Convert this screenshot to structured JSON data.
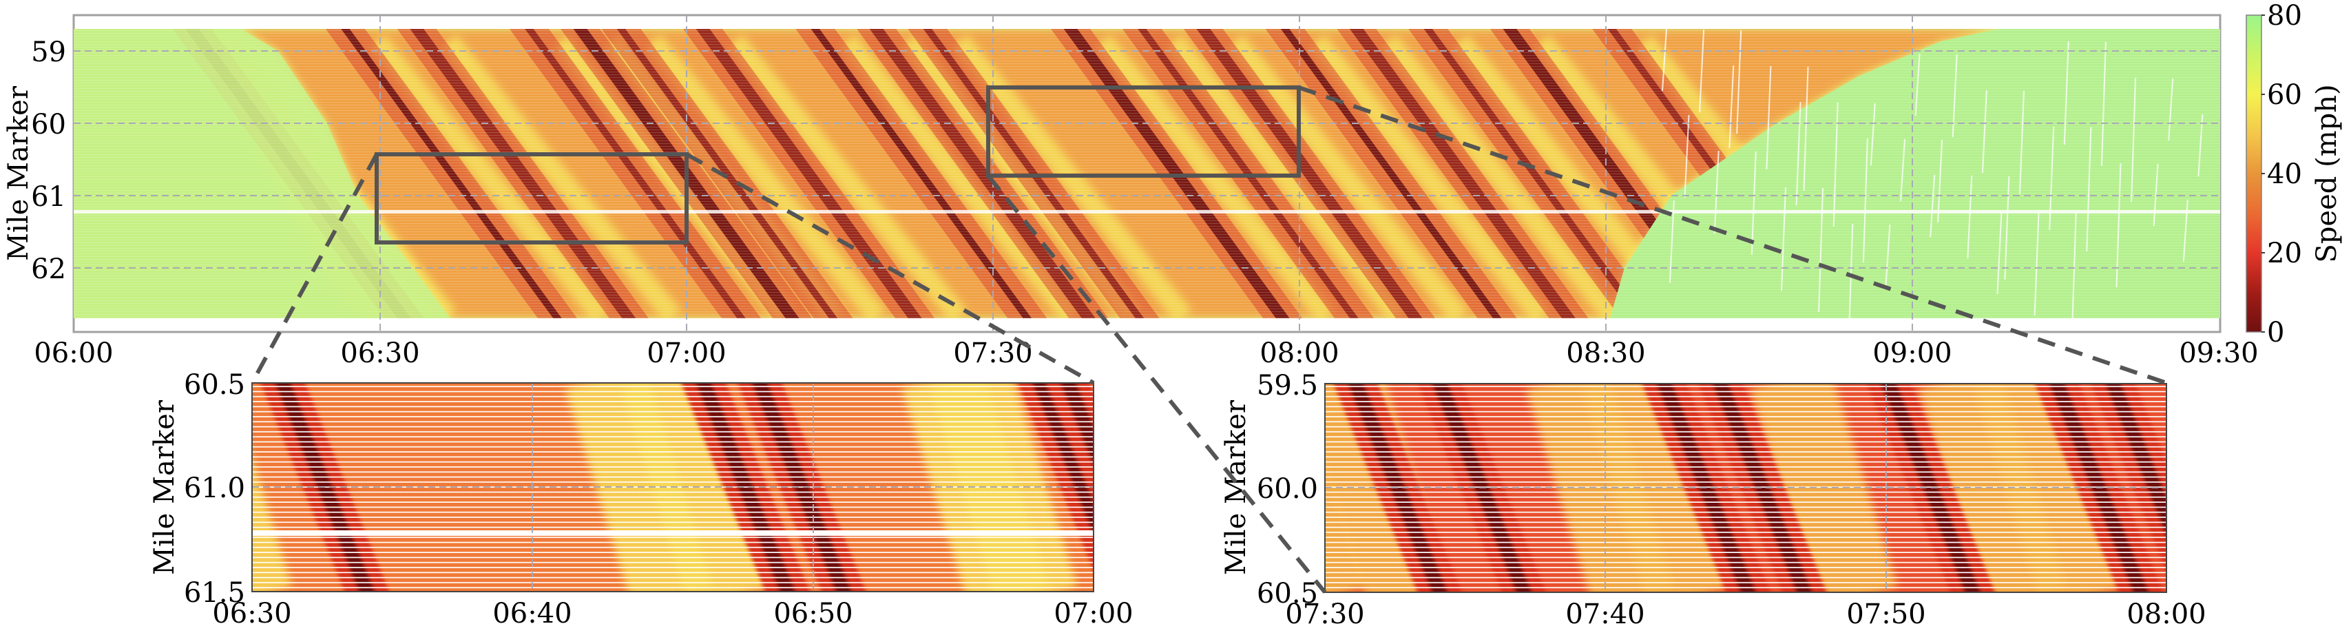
{
  "chart_data": [
    {
      "id": "main",
      "type": "heatmap",
      "title": "",
      "xlabel": "",
      "ylabel": "Mile Marker",
      "x_ticks": [
        "06:00",
        "06:30",
        "07:00",
        "07:30",
        "08:00",
        "08:30",
        "09:00",
        "09:30"
      ],
      "y_ticks": [
        "59",
        "60",
        "61",
        "62"
      ],
      "xlim": [
        "06:00",
        "09:30"
      ],
      "ylim": [
        62.7,
        58.7
      ],
      "y_inverted": true,
      "grid": true,
      "colorbar": {
        "label": "Speed (mph)",
        "ticks": [
          "0",
          "20",
          "40",
          "60",
          "80"
        ],
        "range": [
          0,
          80
        ],
        "colors": [
          {
            "value": 0,
            "hex": "#6e1010"
          },
          {
            "value": 20,
            "hex": "#e4372a"
          },
          {
            "value": 40,
            "hex": "#e8963a"
          },
          {
            "value": 60,
            "hex": "#f4f250"
          },
          {
            "value": 80,
            "hex": "#9cf58a"
          }
        ]
      },
      "description": "Time-space speed diagram; free flow (~70-80 mph) before ~06:20 and after ~08:30; congested stop-and-go waves (0-40 mph) propagating upstream between ~06:20 and ~08:40",
      "congestion_onset": [
        {
          "mile": 58.7,
          "time": "06:08"
        },
        {
          "mile": 59.0,
          "time": "06:12"
        },
        {
          "mile": 60.0,
          "time": "06:17"
        },
        {
          "mile": 61.0,
          "time": "06:20"
        },
        {
          "mile": 62.0,
          "time": "06:25"
        },
        {
          "mile": 62.7,
          "time": "06:28"
        }
      ],
      "congestion_clearance": [
        {
          "mile": 58.7,
          "time": "08:47"
        },
        {
          "mile": 59.0,
          "time": "08:44"
        },
        {
          "mile": 60.0,
          "time": "08:37"
        },
        {
          "mile": 61.0,
          "time": "08:33"
        },
        {
          "mile": 62.0,
          "time": "08:31"
        },
        {
          "mile": 62.7,
          "time": "08:30"
        }
      ],
      "wave_start_times_at_top": [
        "06:11",
        "06:26",
        "06:33",
        "06:44",
        "06:49",
        "06:53",
        "07:01",
        "07:12",
        "07:18",
        "07:23",
        "07:37",
        "07:44",
        "07:50",
        "07:58",
        "08:05",
        "08:12",
        "08:20",
        "08:30"
      ],
      "wave_travel_minutes_across_plot": 22,
      "data_gap_mile": 61.2,
      "zoom_boxes": [
        {
          "x": [
            "06:30",
            "07:00"
          ],
          "y": [
            60.5,
            61.5
          ]
        },
        {
          "x": [
            "07:30",
            "08:00"
          ],
          "y": [
            59.5,
            60.5
          ]
        }
      ]
    },
    {
      "id": "inset_left",
      "type": "heatmap",
      "ylabel": "Mile Marker",
      "x_ticks": [
        "06:30",
        "06:40",
        "06:50",
        "07:00"
      ],
      "y_ticks": [
        "60.5",
        "61.0",
        "61.5"
      ],
      "xlim": [
        "06:30",
        "07:00"
      ],
      "ylim": [
        61.5,
        60.5
      ],
      "wave_centers_at_top": [
        "06:31",
        "06:46",
        "06:48",
        "06:58",
        "06:59"
      ],
      "data_gap_mile": 61.2
    },
    {
      "id": "inset_right",
      "type": "heatmap",
      "ylabel": "Mile Marker",
      "x_ticks": [
        "07:30",
        "07:40",
        "07:50",
        "08:00"
      ],
      "y_ticks": [
        "59.5",
        "60.0",
        "60.5"
      ],
      "xlim": [
        "07:30",
        "08:00"
      ],
      "ylim": [
        60.5,
        59.5
      ],
      "wave_centers_at_top": [
        "07:31",
        "07:34",
        "07:42",
        "07:44",
        "07:50",
        "07:56",
        "07:58"
      ]
    }
  ],
  "labels": {
    "main_ylabel": "Mile Marker",
    "colorbar_label": "Speed (mph)",
    "inset_left_ylabel": "Mile Marker",
    "inset_right_ylabel": "Mile Marker"
  }
}
